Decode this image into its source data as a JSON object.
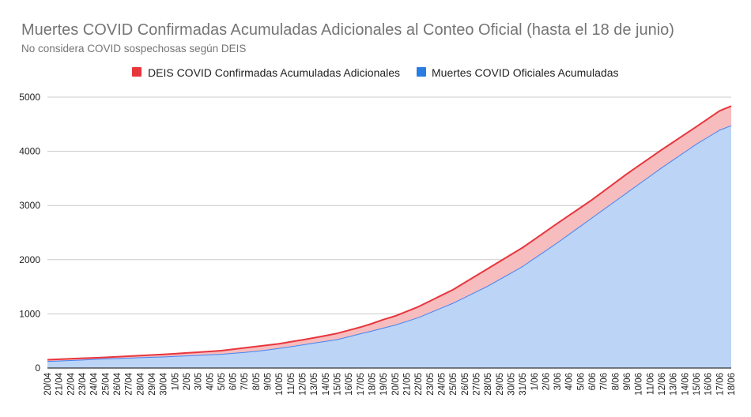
{
  "chart_data": {
    "type": "area",
    "stacked": true,
    "title": "Muertes COVID Confirmadas Acumuladas Adicionales al Conteo Oficial (hasta el 18 de junio)",
    "subtitle": "No considera COVID sospechosas según DEIS",
    "xlabel": "",
    "ylabel": "",
    "ylim": [
      0,
      5000
    ],
    "yticks": [
      "0",
      "1000",
      "2000",
      "3000",
      "4000",
      "5000"
    ],
    "grid": true,
    "legend_position": "top",
    "categories": [
      "20/04",
      "21/04",
      "22/04",
      "23/04",
      "24/04",
      "25/04",
      "26/04",
      "27/04",
      "28/04",
      "29/04",
      "30/04",
      "1/05",
      "2/05",
      "3/05",
      "4/05",
      "5/05",
      "6/05",
      "7/05",
      "8/05",
      "9/05",
      "10/05",
      "11/05",
      "12/05",
      "13/05",
      "14/05",
      "15/05",
      "16/05",
      "17/05",
      "18/05",
      "19/05",
      "20/05",
      "21/05",
      "22/05",
      "23/05",
      "24/05",
      "25/05",
      "26/05",
      "27/05",
      "28/05",
      "29/05",
      "30/05",
      "31/05",
      "1/06",
      "2/06",
      "3/06",
      "4/06",
      "5/06",
      "6/06",
      "7/06",
      "8/06",
      "9/06",
      "10/06",
      "11/06",
      "12/06",
      "13/06",
      "14/06",
      "15/06",
      "16/06",
      "17/06",
      "18/06"
    ],
    "series": [
      {
        "name": "Muertes COVID Oficiales Acumuladas",
        "color": "#4285f4",
        "fill": "#bcd4f6",
        "values": [
          128,
          137,
          146,
          155,
          165,
          177,
          183,
          190,
          198,
          205,
          212,
          222,
          232,
          241,
          251,
          261,
          278,
          295,
          315,
          340,
          369,
          400,
          434,
          468,
          500,
          532,
          585,
          640,
          690,
          745,
          800,
          868,
          937,
          1026,
          1115,
          1204,
          1309,
          1414,
          1519,
          1640,
          1761,
          1883,
          2029,
          2174,
          2320,
          2474,
          2627,
          2781,
          2935,
          3089,
          3243,
          3397,
          3550,
          3704,
          3850,
          3995,
          4141,
          4270,
          4398,
          4481
        ]
      },
      {
        "name": "DEIS COVID Confirmadas Acumuladas Adicionales",
        "color": "#e8363d",
        "fill": "#f6bcbe",
        "values": [
          25,
          25,
          25,
          25,
          23,
          20,
          25,
          29,
          32,
          35,
          39,
          43,
          47,
          51,
          55,
          59,
          68,
          76,
          82,
          82,
          79,
          84,
          86,
          89,
          98,
          108,
          112,
          114,
          130,
          150,
          160,
          177,
          194,
          210,
          227,
          243,
          267,
          292,
          316,
          324,
          333,
          340,
          343,
          347,
          350,
          342,
          334,
          326,
          331,
          335,
          340,
          335,
          330,
          325,
          321,
          319,
          315,
          332,
          350,
          354
        ]
      }
    ]
  }
}
